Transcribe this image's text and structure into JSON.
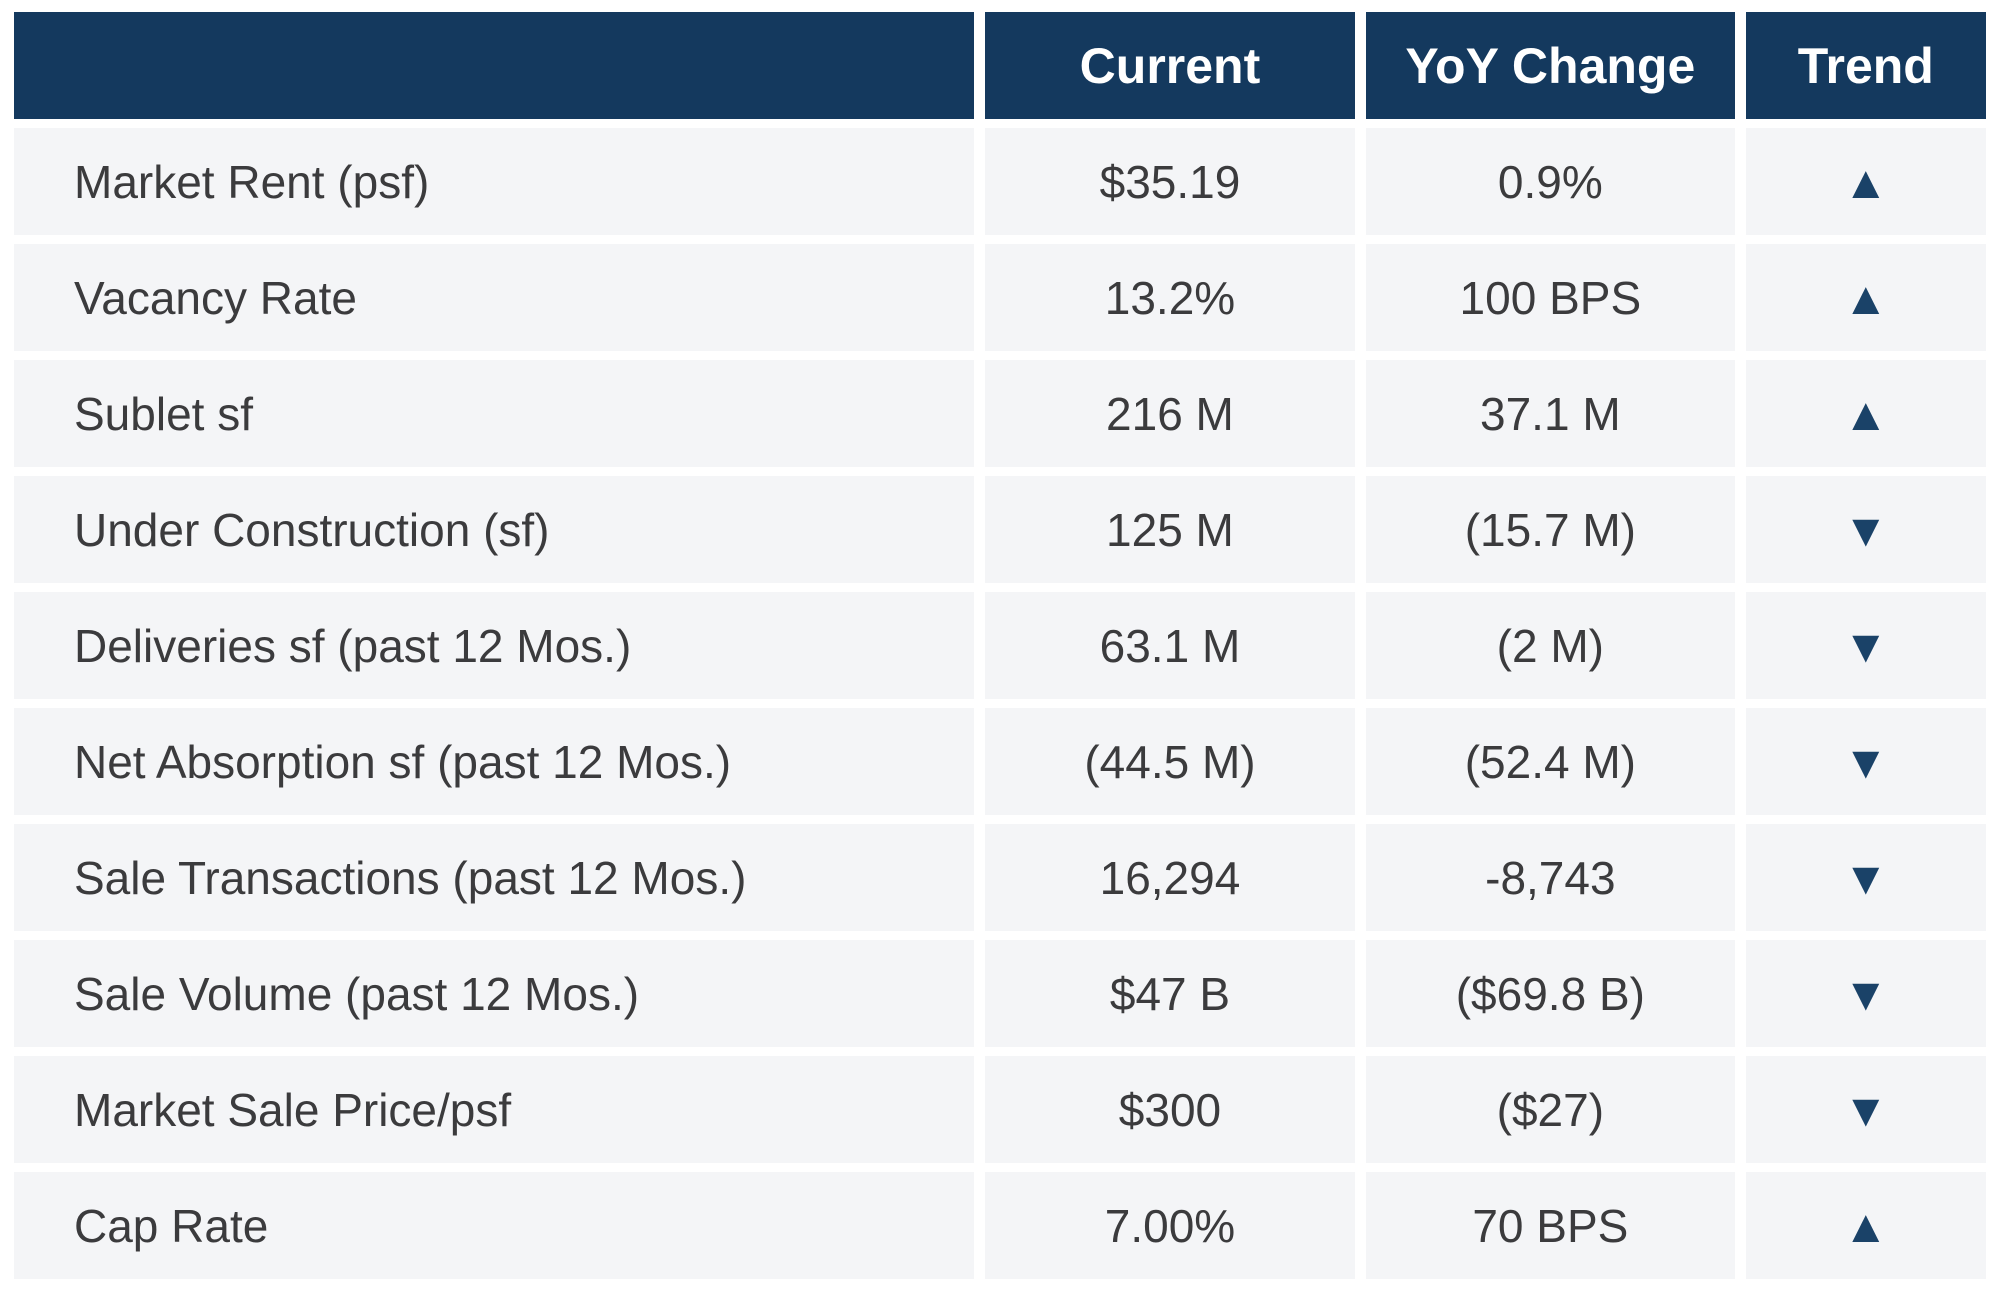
{
  "chart_data": {
    "type": "table",
    "columns": [
      "",
      "Current",
      "YoY Change",
      "Trend"
    ],
    "rows": [
      {
        "label": "Market Rent (psf)",
        "current": "$35.19",
        "yoy_change": "0.9%",
        "trend": "up"
      },
      {
        "label": "Vacancy Rate",
        "current": "13.2%",
        "yoy_change": "100 BPS",
        "trend": "up"
      },
      {
        "label": "Sublet sf",
        "current": "216 M",
        "yoy_change": "37.1 M",
        "trend": "up"
      },
      {
        "label": "Under Construction (sf)",
        "current": "125 M",
        "yoy_change": "(15.7 M)",
        "trend": "down"
      },
      {
        "label": "Deliveries sf (past 12 Mos.)",
        "current": "63.1 M",
        "yoy_change": "(2 M)",
        "trend": "down"
      },
      {
        "label": "Net Absorption sf (past 12 Mos.)",
        "current": "(44.5 M)",
        "yoy_change": "(52.4 M)",
        "trend": "down"
      },
      {
        "label": "Sale Transactions (past 12 Mos.)",
        "current": "16,294",
        "yoy_change": "-8,743",
        "trend": "down"
      },
      {
        "label": "Sale Volume (past 12 Mos.)",
        "current": "$47 B",
        "yoy_change": "($69.8 B)",
        "trend": "down"
      },
      {
        "label": "Market Sale Price/psf",
        "current": "$300",
        "yoy_change": "($27)",
        "trend": "down"
      },
      {
        "label": "Cap Rate",
        "current": "7.00%",
        "yoy_change": "70 BPS",
        "trend": "up"
      }
    ]
  },
  "icons": {
    "trend_up": "▲",
    "trend_down": "▼"
  },
  "colors": {
    "header_bg": "#14395E",
    "header_text": "#FFFFFF",
    "row_bg": "#F4F5F7",
    "row_text": "#3B3B3D",
    "trend_icon": "#1A4268",
    "gutter": "#FFFFFF"
  }
}
